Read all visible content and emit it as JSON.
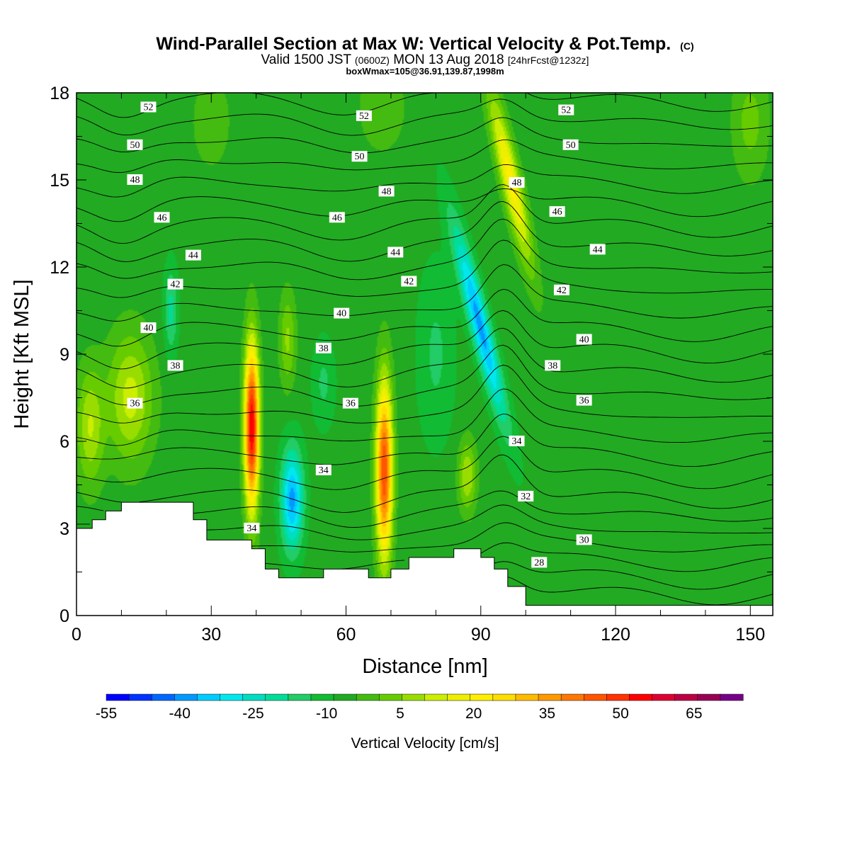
{
  "chart_data": {
    "type": "heatmap",
    "title": "Wind-Parallel Section at Max W: Vertical Velocity & Pot.Temp.",
    "title_mark": "(C)",
    "subtitle_parts": {
      "valid": "Valid 1500 JST",
      "utc": "(0600Z)",
      "date": "MON 13 Aug 2018",
      "fcst": "[24hrFcst@1232z]"
    },
    "subtitle2": "boxWmax=105@36.91,139.87,1998m",
    "xlabel": "Distance [nm]",
    "ylabel": "Height [Kft MSL]",
    "xlim": [
      0,
      155
    ],
    "ylim": [
      0,
      18
    ],
    "x_ticks": [
      "0",
      "30",
      "60",
      "90",
      "120",
      "150"
    ],
    "y_ticks": [
      "0",
      "3",
      "6",
      "9",
      "12",
      "15",
      "18"
    ],
    "colorbar": {
      "label": "Vertical Velocity [cm/s]",
      "min": -55,
      "max": 75,
      "step": 5,
      "tick_labels": [
        "-55",
        "-40",
        "-25",
        "-10",
        "5",
        "20",
        "35",
        "50",
        "65"
      ],
      "colors": [
        "#0000ff",
        "#0033ff",
        "#0066ff",
        "#0099ff",
        "#00ccff",
        "#00e8ee",
        "#00ddc0",
        "#00dd99",
        "#22cc66",
        "#11bb33",
        "#22aa22",
        "#44bb11",
        "#66cc00",
        "#99dd00",
        "#ccee00",
        "#eeee00",
        "#ffee00",
        "#ffdd00",
        "#ffbb00",
        "#ff9900",
        "#ff7700",
        "#ff5500",
        "#ff3300",
        "#ff0000",
        "#dd0033",
        "#bb0044",
        "#990055",
        "#770088"
      ]
    },
    "w_features": [
      {
        "x": 12,
        "z": 7.5,
        "w": 20
      },
      {
        "x": 3,
        "z": 6.5,
        "w": 18
      },
      {
        "x": 39,
        "z": 7.0,
        "w": 68
      },
      {
        "x": 48,
        "z": 4.0,
        "w": -28
      },
      {
        "x": 68.5,
        "z": 5.0,
        "w": 58
      },
      {
        "x": 93,
        "z": 9.0,
        "w": -32
      },
      {
        "x": 97,
        "z": 14.0,
        "w": 30
      },
      {
        "x": 99,
        "z": 17.0,
        "w": 22
      },
      {
        "x": 47,
        "z": 9.5,
        "w": 15
      },
      {
        "x": 87,
        "z": 4.5,
        "w": 20
      }
    ],
    "theta_contour_labels": [
      "28",
      "30",
      "32",
      "34",
      "36",
      "38",
      "40",
      "42",
      "44",
      "46",
      "48",
      "50",
      "52"
    ]
  }
}
